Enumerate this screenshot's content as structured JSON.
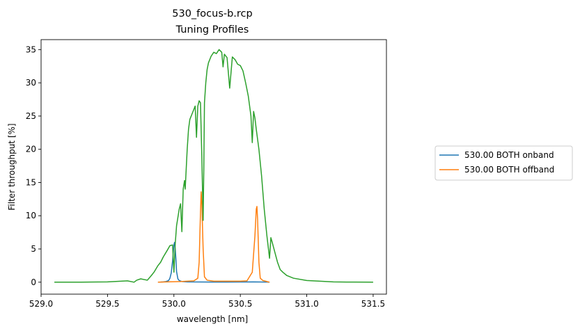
{
  "chart_data": {
    "type": "line",
    "title": "530_focus-b.rcp",
    "subtitle": "Tuning Profiles",
    "xlabel": "wavelength [nm]",
    "ylabel": "Filter throughput [%]",
    "xlim": [
      529.0,
      531.6
    ],
    "ylim": [
      -1.8,
      36.5
    ],
    "xticks": [
      529.0,
      529.5,
      530.0,
      530.5,
      531.0,
      531.5
    ],
    "xtick_labels": [
      "529.0",
      "529.5",
      "530.0",
      "530.5",
      "531.0",
      "531.5"
    ],
    "yticks": [
      0,
      5,
      10,
      15,
      20,
      25,
      30,
      35
    ],
    "ytick_labels": [
      "0",
      "5",
      "10",
      "15",
      "20",
      "25",
      "30",
      "35"
    ],
    "grid": false,
    "legend_position": "right, outside plot",
    "series": [
      {
        "name": "530.00 BOTH onband",
        "color": "#1f77b4",
        "x": [
          529.88,
          529.9,
          529.92,
          529.94,
          529.96,
          529.97,
          529.98,
          529.99,
          530.0,
          530.005,
          530.01,
          530.015,
          530.02,
          530.03,
          530.04,
          530.06,
          530.1,
          530.2,
          530.3,
          530.4,
          530.5,
          530.6,
          530.7,
          530.72
        ],
        "y": [
          0.0,
          0.02,
          0.05,
          0.1,
          0.25,
          0.6,
          1.4,
          3.2,
          5.6,
          6.0,
          5.0,
          3.5,
          1.6,
          0.5,
          0.25,
          0.1,
          0.05,
          0.03,
          0.02,
          0.02,
          0.03,
          0.05,
          0.02,
          0.0
        ]
      },
      {
        "name": "530.00 BOTH offband",
        "color": "#ff7f0e",
        "x": [
          529.88,
          529.95,
          530.05,
          530.1,
          530.15,
          530.18,
          530.19,
          530.2,
          530.205,
          530.21,
          530.22,
          530.23,
          530.25,
          530.3,
          530.4,
          530.5,
          530.55,
          530.59,
          530.61,
          530.62,
          530.625,
          530.63,
          530.64,
          530.65,
          530.67,
          530.7,
          530.72
        ],
        "y": [
          0.0,
          0.05,
          0.1,
          0.15,
          0.2,
          0.6,
          3.0,
          10.5,
          13.6,
          12.0,
          5.0,
          0.8,
          0.3,
          0.15,
          0.15,
          0.15,
          0.2,
          1.5,
          7.0,
          11.0,
          11.4,
          9.5,
          3.0,
          0.6,
          0.25,
          0.1,
          0.0
        ]
      },
      {
        "name": "",
        "color": "#2ca02c",
        "x": [
          529.1,
          529.3,
          529.5,
          529.6,
          529.65,
          529.7,
          529.72,
          529.75,
          529.8,
          529.83,
          529.85,
          529.88,
          529.9,
          529.92,
          529.95,
          529.97,
          529.99,
          530.0,
          530.01,
          530.02,
          530.04,
          530.05,
          530.06,
          530.07,
          530.08,
          530.085,
          530.09,
          530.1,
          530.11,
          530.12,
          530.14,
          530.15,
          530.16,
          530.17,
          530.18,
          530.19,
          530.2,
          530.21,
          530.22,
          530.225,
          530.23,
          530.24,
          530.25,
          530.26,
          530.28,
          530.3,
          530.32,
          530.34,
          530.36,
          530.37,
          530.38,
          530.4,
          530.42,
          530.44,
          530.46,
          530.48,
          530.5,
          530.52,
          530.54,
          530.56,
          530.58,
          530.59,
          530.6,
          530.61,
          530.62,
          530.64,
          530.66,
          530.68,
          530.7,
          530.72,
          530.73,
          530.74,
          530.76,
          530.78,
          530.8,
          530.82,
          530.85,
          530.9,
          531.0,
          531.1,
          531.2,
          531.3,
          531.5
        ],
        "y": [
          0.0,
          0.0,
          0.05,
          0.15,
          0.2,
          0.0,
          0.3,
          0.5,
          0.3,
          1.0,
          1.5,
          2.5,
          3.0,
          3.8,
          4.8,
          5.5,
          5.6,
          1.5,
          5.8,
          8.5,
          11.0,
          11.8,
          7.6,
          14.0,
          15.3,
          14.0,
          16.0,
          20.0,
          23.0,
          24.5,
          25.5,
          26.0,
          26.5,
          21.8,
          26.5,
          27.3,
          27.0,
          19.0,
          9.3,
          17.0,
          27.0,
          30.0,
          32.0,
          33.0,
          34.0,
          34.6,
          34.4,
          35.0,
          34.6,
          32.4,
          34.3,
          33.8,
          29.2,
          33.9,
          33.5,
          32.8,
          32.6,
          31.8,
          30.0,
          28.0,
          25.0,
          21.0,
          25.7,
          24.7,
          23.0,
          20.0,
          16.0,
          11.0,
          7.0,
          3.6,
          6.7,
          6.0,
          4.5,
          3.0,
          1.9,
          1.5,
          1.0,
          0.6,
          0.25,
          0.15,
          0.05,
          0.02,
          0.0
        ]
      }
    ]
  }
}
